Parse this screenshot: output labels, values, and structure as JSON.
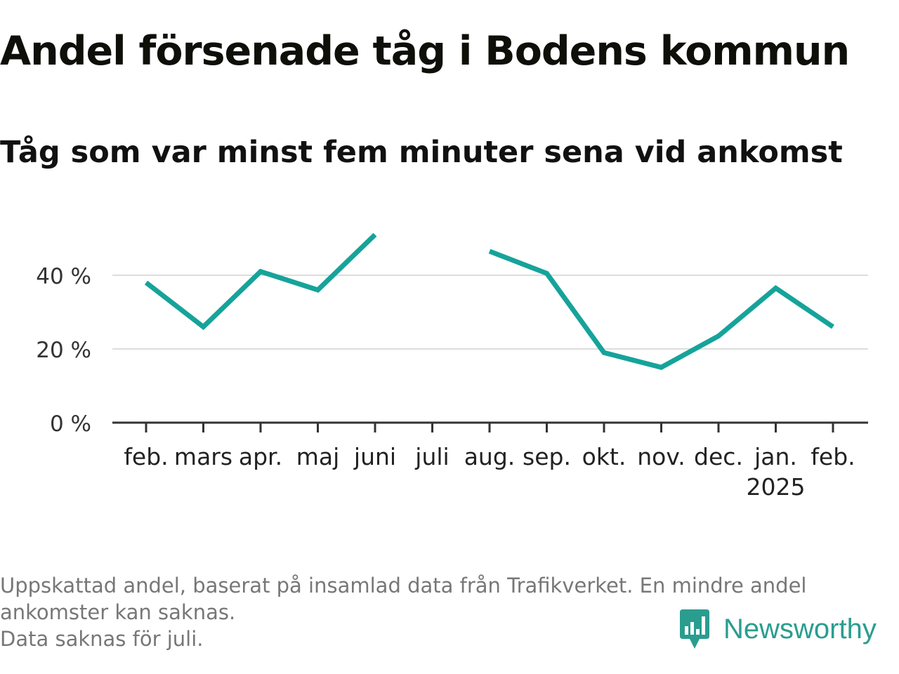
{
  "title": "Andel försenade tåg i Bodens kommun",
  "subtitle": "Tåg som var minst fem minuter sena vid ankomst",
  "chart_data": {
    "type": "line",
    "x": [
      "feb.",
      "mars",
      "apr.",
      "maj",
      "juni",
      "juli",
      "aug.",
      "sep.",
      "okt.",
      "nov.",
      "dec.",
      "jan.",
      "feb."
    ],
    "x_sublabels": {
      "11": "2025"
    },
    "series": [
      {
        "values": [
          38,
          26,
          41,
          36,
          51,
          null,
          46.5,
          40.5,
          19,
          15,
          23.5,
          36.5,
          26
        ]
      }
    ],
    "yticks": [
      0,
      20,
      40
    ],
    "ytick_labels": [
      "0 %",
      "20 %",
      "40 %"
    ],
    "ylim": [
      0,
      55
    ],
    "grid": true,
    "line_color": "#16a39a"
  },
  "footnote": {
    "line1": "Uppskattad andel, baserat på insamlad data från Trafikverket. En mindre andel",
    "line2": "ankomster kan saknas.",
    "line3": "Data saknas för juli."
  },
  "brand": {
    "name": "Newsworthy",
    "icon": "newsworthy-logo-icon",
    "color": "#2a9d8f"
  }
}
